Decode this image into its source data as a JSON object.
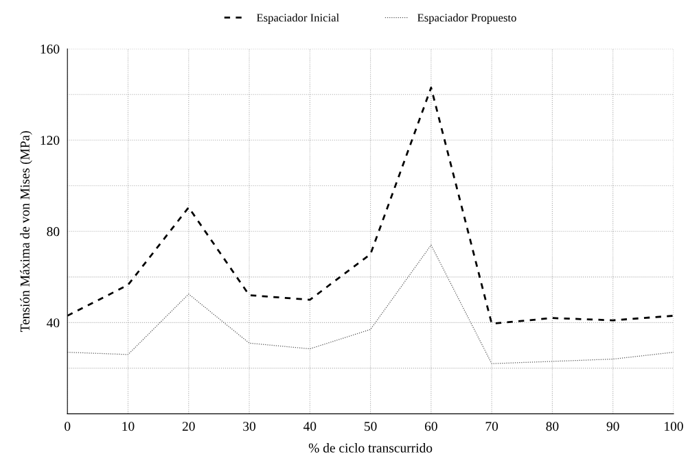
{
  "chart_data": {
    "type": "line",
    "xlabel": "% de ciclo transcurrido",
    "ylabel": "Tensión Máxima de von Mises (MPa)",
    "x": [
      0,
      10,
      20,
      30,
      40,
      50,
      60,
      70,
      80,
      90,
      100
    ],
    "series": [
      {
        "name": "Espaciador Inicial",
        "color": "#000000",
        "line_style": "dashed",
        "values": [
          43,
          56.5,
          90.5,
          52,
          50,
          70,
          143,
          39.5,
          42,
          41,
          43
        ]
      },
      {
        "name": "Espaciador Propuesto",
        "color": "#555555",
        "line_style": "dotted",
        "values": [
          27,
          26,
          52.5,
          31,
          28.5,
          37,
          74,
          22,
          23,
          24,
          27
        ]
      }
    ],
    "xlim": [
      0,
      100
    ],
    "xticks": [
      0,
      10,
      20,
      30,
      40,
      50,
      60,
      70,
      80,
      90,
      100
    ],
    "ylim": [
      0,
      160
    ],
    "yticks": [
      {
        "value": 20,
        "label": null
      },
      40,
      {
        "value": 60,
        "label": null
      },
      80,
      {
        "value": 100,
        "label": null
      },
      120,
      {
        "value": 140,
        "label": null
      },
      160
    ],
    "grid": true,
    "legend": "top",
    "marker": "none"
  }
}
